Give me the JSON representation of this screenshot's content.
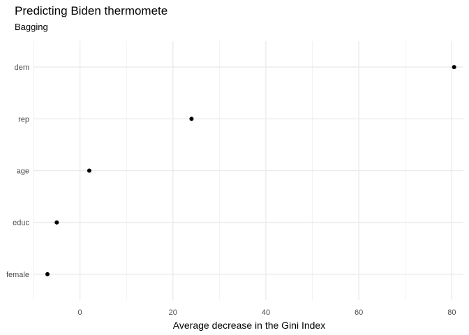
{
  "chart_data": {
    "type": "scatter",
    "title": "Predicting Biden thermomete",
    "subtitle": "Bagging",
    "xlabel": "Average decrease in the Gini Index",
    "ylabel": "",
    "xlim": [
      -10,
      82.5
    ],
    "x_ticks": [
      0,
      20,
      40,
      60,
      80
    ],
    "x_tick_labels": [
      "0",
      "20",
      "40",
      "60",
      "80"
    ],
    "categories": [
      "dem",
      "rep",
      "age",
      "educ",
      "female"
    ],
    "values": [
      80.5,
      24.0,
      2.0,
      -5.0,
      -7.0
    ],
    "grid": true,
    "legend": "none",
    "point_color": "#000000",
    "grid_major_color": "#ebebeb",
    "grid_minor_color": "#f2f2f2"
  }
}
